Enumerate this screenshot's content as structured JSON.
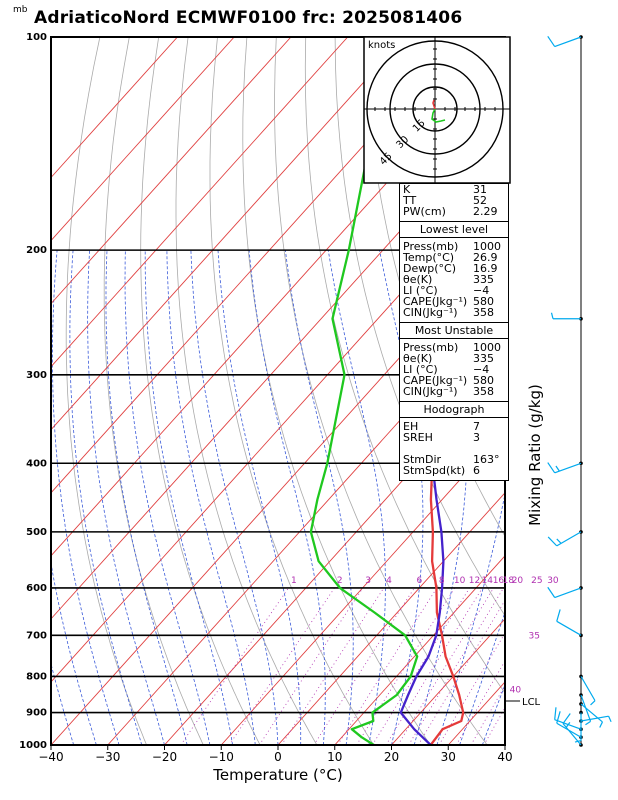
{
  "title": "AdriaticoNord ECMWF0100 frc: 2025081406",
  "pressure_unit": "mb",
  "xlabel": "Temperature (°C)",
  "mixing_ratio_label": "Mixing Ratio (g/kg)",
  "lcl_label": "LCL",
  "hodograph": {
    "unit_label": "knots",
    "rings": [
      "15",
      "30",
      "45"
    ]
  },
  "colors": {
    "temperature": "#e53a3a",
    "dewpoint": "#1fc81f",
    "parcel": "#4422cc",
    "isotherm": "#e04040",
    "dry_adiabat": "#aaaaaa",
    "moist_adiabat": "#3b5bd9",
    "mixing_ratio": "#b030b0",
    "wind": "#00aaee"
  },
  "indices": [
    {
      "label": "K",
      "value": "31"
    },
    {
      "label": "TT",
      "value": "52"
    },
    {
      "label": "PW(cm)",
      "value": "2.29"
    }
  ],
  "lowest_level": {
    "header": "Lowest level",
    "rows": [
      {
        "label": "Press(mb)",
        "value": "1000"
      },
      {
        "label": "Temp(°C)",
        "value": "26.9"
      },
      {
        "label": "Dewp(°C)",
        "value": "16.9"
      },
      {
        "label": "θe(K)",
        "value": "335"
      },
      {
        "label": "LI (°C)",
        "value": "−4"
      },
      {
        "label": "CAPE(Jkg⁻¹)",
        "value": "580"
      },
      {
        "label": "CIN(Jkg⁻¹)",
        "value": "358"
      }
    ]
  },
  "most_unstable": {
    "header": "Most Unstable",
    "rows": [
      {
        "label": "Press(mb)",
        "value": "1000"
      },
      {
        "label": "θe(K)",
        "value": "335"
      },
      {
        "label": "LI (°C)",
        "value": "−4"
      },
      {
        "label": "CAPE(Jkg⁻¹)",
        "value": "580"
      },
      {
        "label": "CIN(Jkg⁻¹)",
        "value": "358"
      }
    ]
  },
  "hodograph_panel": {
    "header": "Hodograph",
    "rows": [
      {
        "label": "EH",
        "value": "7"
      },
      {
        "label": "SREH",
        "value": "3"
      },
      {
        "label": "",
        "value": ""
      },
      {
        "label": "StmDir",
        "value": "163°"
      },
      {
        "label": "StmSpd(kt)",
        "value": "6"
      }
    ]
  },
  "chart_data": {
    "type": "line",
    "xlabel": "Temperature (°C)",
    "ylabel": "mb",
    "xlim": [
      -40,
      40
    ],
    "ylim": [
      1000,
      100
    ],
    "log_scale_y": true,
    "x_ticks": [
      "−40",
      "−30",
      "−20",
      "−10",
      "0",
      "10",
      "20",
      "30",
      "40"
    ],
    "y_ticks": [
      "100",
      "200",
      "300",
      "400",
      "500",
      "600",
      "700",
      "800",
      "900",
      "1000"
    ],
    "mixing_ratio_labels": [
      "1",
      "2",
      "3",
      "4",
      "6",
      "8",
      "10",
      "12",
      "14",
      "16",
      "18",
      "20",
      "25",
      "30",
      "35",
      "40"
    ],
    "series": [
      {
        "role": "temperature",
        "p": [
          1000,
          950,
          925,
          900,
          850,
          800,
          750,
          700,
          650,
          600,
          550,
          500,
          450,
          400,
          350,
          300,
          250,
          200,
          150,
          100
        ],
        "t": [
          26.9,
          26.5,
          28.5,
          27.5,
          24.0,
          20.0,
          15.5,
          11.5,
          7.0,
          3.0,
          -2.0,
          -6.5,
          -12.0,
          -17.5,
          -24.5,
          -32.0,
          -41.0,
          -47.0,
          -55.0,
          -63.0
        ]
      },
      {
        "role": "dewpoint",
        "p": [
          1000,
          975,
          950,
          925,
          900,
          850,
          800,
          750,
          700,
          650,
          600,
          550,
          500,
          450,
          400,
          300,
          250,
          200,
          150,
          100
        ],
        "t": [
          16.9,
          13.5,
          10.5,
          13.0,
          11.5,
          13.0,
          12.5,
          10.5,
          5.0,
          -4.0,
          -14.0,
          -22.0,
          -28.0,
          -32.0,
          -36.0,
          -47.0,
          -58.0,
          -66.0,
          -77.0,
          -87.0
        ]
      },
      {
        "role": "parcel",
        "p": [
          1000,
          950,
          900,
          850,
          800,
          750,
          700,
          650,
          600,
          550,
          500,
          450,
          400,
          350,
          300,
          250,
          200,
          175,
          150,
          125,
          110
        ],
        "t": [
          26.9,
          21.5,
          16.5,
          15.0,
          13.5,
          12.5,
          10.5,
          7.5,
          4.0,
          0.0,
          -5.0,
          -11.0,
          -17.5,
          -24.5,
          -33.0,
          -43.0,
          -55.0,
          -63.0,
          -71.0,
          -80.0,
          -86.0
        ]
      }
    ],
    "winds": [
      {
        "p": 1000,
        "dir": 320,
        "kt": 15
      },
      {
        "p": 975,
        "dir": 300,
        "kt": 10
      },
      {
        "p": 950,
        "dir": 290,
        "kt": 10
      },
      {
        "p": 925,
        "dir": 80,
        "kt": 5
      },
      {
        "p": 900,
        "dir": 180,
        "kt": 5
      },
      {
        "p": 875,
        "dir": 130,
        "kt": 5
      },
      {
        "p": 850,
        "dir": 160,
        "kt": 5
      },
      {
        "p": 800,
        "dir": 150,
        "kt": 5
      },
      {
        "p": 700,
        "dir": 300,
        "kt": 10
      },
      {
        "p": 600,
        "dir": 250,
        "kt": 10
      },
      {
        "p": 500,
        "dir": 240,
        "kt": 15
      },
      {
        "p": 400,
        "dir": 250,
        "kt": 15
      },
      {
        "p": 250,
        "dir": 270,
        "kt": 5
      },
      {
        "p": 100,
        "dir": 250,
        "kt": 10
      }
    ]
  }
}
